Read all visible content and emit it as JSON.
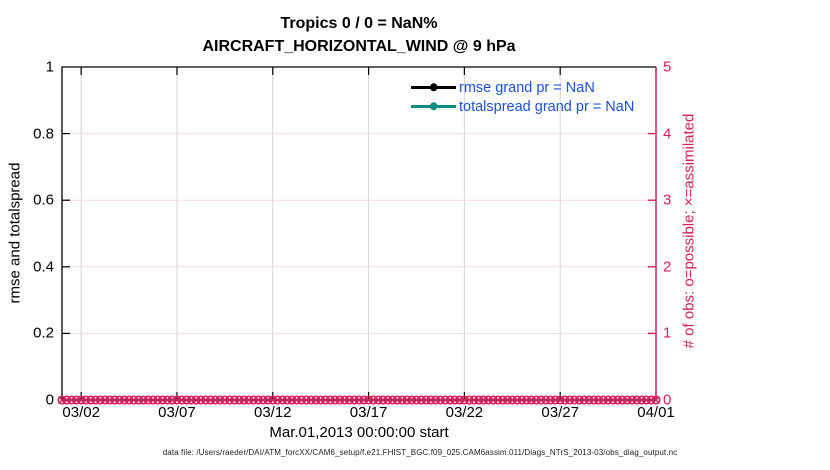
{
  "caption": "data file: /Users/raeder/DAI/ATM_forcXX/CAM6_setup/f.e21.FHIST_BGC.f09_025.CAM6assim.011/Diags_NTrS_2013-03/obs_diag_output.nc",
  "colors": {
    "axis_black": "#000000",
    "obs_pink": "#d81e5b",
    "grid_pink": "#f7d9e3",
    "grid_gray": "#d4d4d4",
    "legend_text_blue": "#1b4fdf",
    "totalspread_teal": "#0e8c80",
    "caption_color": "#222222"
  },
  "legend": {
    "text_color": "#1b4fdf"
  },
  "chart_data": {
    "type": "line",
    "title": "Tropics 0 / 0 = NaN%",
    "subtitle": "AIRCRAFT_HORIZONTAL_WIND @ 9 hPa",
    "x": {
      "start_label": "Mar.01,2013 00:00:00 start",
      "range_days": [
        0,
        31
      ],
      "tick_days": [
        1,
        6,
        11,
        16,
        21,
        26,
        31
      ],
      "tick_labels": [
        "03/02",
        "03/07",
        "03/12",
        "03/17",
        "03/22",
        "03/27",
        "04/01"
      ],
      "grid": true
    },
    "y_left": {
      "label": "rmse and totalspread",
      "range": [
        0,
        1
      ],
      "ticks": [
        0,
        0.2,
        0.4,
        0.6,
        0.8,
        1
      ],
      "tick_labels": [
        "0",
        "0.2",
        "0.4",
        "0.6",
        "0.8",
        "1"
      ],
      "grid": true
    },
    "y_right": {
      "label": "# of obs: o=possible; ×=assimilated",
      "range": [
        0,
        5
      ],
      "ticks": [
        0,
        1,
        2,
        3,
        4,
        5
      ],
      "tick_labels": [
        "0",
        "1",
        "2",
        "3",
        "4",
        "5"
      ],
      "color": "#d81e5b"
    },
    "series": [
      {
        "name": "rmse",
        "legend_label": "rmse grand pr = NaN",
        "color": "#000000",
        "marker": "filled-circle",
        "values": null
      },
      {
        "name": "totalspread",
        "legend_label": "totalspread grand pr = NaN",
        "color": "#0e8c80",
        "marker": "filled-circle",
        "values": null
      },
      {
        "name": "possible-obs",
        "marker": "o",
        "color": "#d81e5b",
        "y_constant": 0,
        "x_start_day": 0,
        "x_end_day": 31,
        "x_step_days": 0.25
      },
      {
        "name": "assimilated-obs",
        "marker": "x",
        "color": "#d81e5b",
        "y_constant": 0,
        "x_start_day": 0,
        "x_end_day": 31,
        "x_step_days": 0.25
      }
    ],
    "legend_position": "upper-center-right",
    "grid": true
  }
}
